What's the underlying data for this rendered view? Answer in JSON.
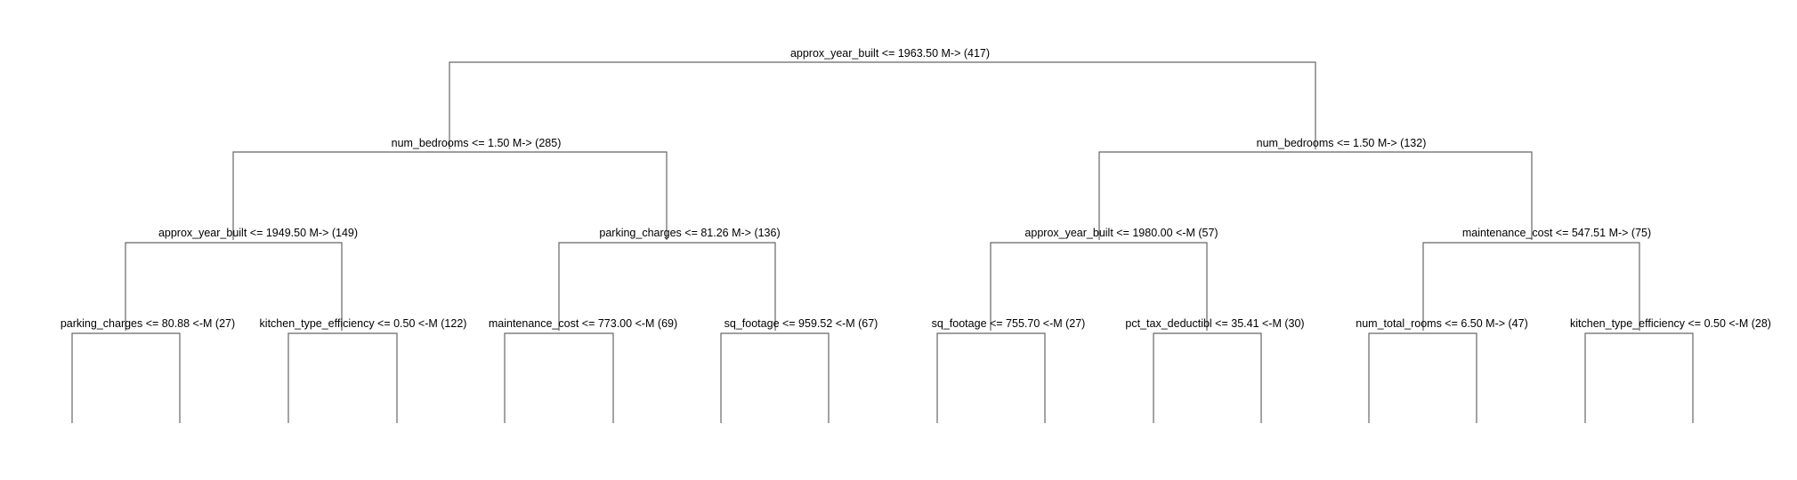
{
  "tree": {
    "nodes": {
      "n_root": "approx_year_built <= 1963.50 M-> (417)",
      "n_l": "num_bedrooms <= 1.50 M-> (285)",
      "n_r": "num_bedrooms <= 1.50 M-> (132)",
      "n_ll": "approx_year_built <= 1949.50 M-> (149)",
      "n_lr": "parking_charges <= 81.26 M-> (136)",
      "n_rl": "approx_year_built <= 1980.00 <-M (57)",
      "n_rr": "maintenance_cost <= 547.51 M-> (75)",
      "n_lll": "parking_charges <= 80.88 <-M (27)",
      "n_llr": "kitchen_type_efficiency <= 0.50 <-M (122)",
      "n_lrl": "maintenance_cost <= 773.00 <-M (69)",
      "n_lrr": "sq_footage <= 959.52 <-M (67)",
      "n_rll": "sq_footage <= 755.70 <-M (27)",
      "n_rlr": "pct_tax_deductibl <= 35.41 <-M (30)",
      "n_rrl": "num_total_rooms <= 6.50 M-> (47)",
      "n_rrr": "kitchen_type_efficiency <= 0.50 <-M (28)"
    }
  }
}
